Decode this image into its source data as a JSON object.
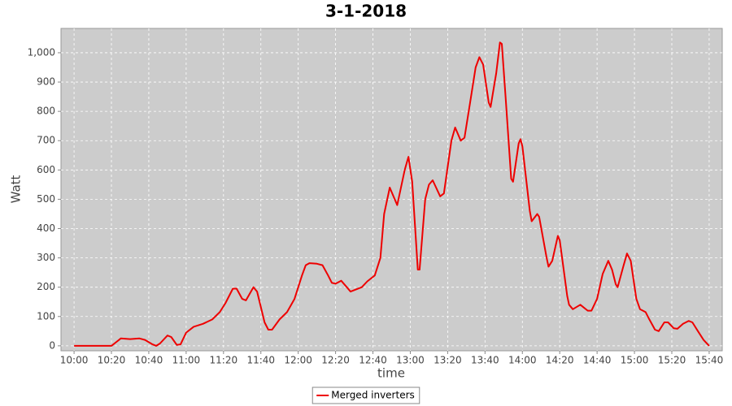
{
  "chart_data": {
    "type": "line",
    "title": "3-1-2018",
    "x_label": "time",
    "y_label": "Watt",
    "grid": true,
    "legend": "bottom",
    "xlim": [
      "09:53",
      "15:47"
    ],
    "xticks": [
      "10:00",
      "10:20",
      "10:40",
      "11:00",
      "11:20",
      "11:40",
      "12:00",
      "12:20",
      "12:40",
      "13:00",
      "13:20",
      "13:40",
      "14:00",
      "14:20",
      "14:40",
      "15:00",
      "15:20",
      "15:40"
    ],
    "ylim": [
      -17,
      1083
    ],
    "yticks": [
      0,
      100,
      200,
      300,
      400,
      500,
      600,
      700,
      800,
      900,
      {
        "value": 1000,
        "label": "1,000"
      }
    ],
    "x": [
      "10:00",
      "10:10",
      "10:20",
      "10:23",
      "10:25",
      "10:30",
      "10:35",
      "10:38",
      "10:42",
      "10:44",
      "10:46",
      "10:50",
      "10:52",
      "10:55",
      "10:57",
      "11:00",
      "11:04",
      "11:09",
      "11:14",
      "11:18",
      "11:21",
      "11:25",
      "11:27",
      "11:30",
      "11:32",
      "11:36",
      "11:38",
      "11:42",
      "11:44",
      "11:46",
      "11:50",
      "11:54",
      "11:58",
      "12:02",
      "12:04",
      "12:06",
      "12:10",
      "12:13",
      "12:16",
      "12:18",
      "12:20",
      "12:23",
      "12:26",
      "12:28",
      "12:34",
      "12:37",
      "12:41",
      "12:44",
      "12:46",
      "12:49",
      "12:53",
      "12:57",
      "12:59",
      "13:01",
      "13:04",
      "13:05",
      "13:08",
      "13:10",
      "13:12",
      "13:16",
      "13:18",
      "13:22",
      "13:24",
      "13:27",
      "13:29",
      "13:32",
      "13:35",
      "13:37",
      "13:39",
      "13:42",
      "13:43",
      "13:46",
      "13:48",
      "13:49",
      "13:51",
      "13:54",
      "13:55",
      "13:58",
      "13:59",
      "14:00",
      "14:04",
      "14:05",
      "14:08",
      "14:09",
      "14:13",
      "14:14",
      "14:16",
      "14:19",
      "14:20",
      "14:24",
      "14:25",
      "14:27",
      "14:31",
      "14:35",
      "14:37",
      "14:40",
      "14:43",
      "14:46",
      "14:48",
      "14:50",
      "14:51",
      "14:54",
      "14:56",
      "14:58",
      "15:01",
      "15:03",
      "15:06",
      "15:08",
      "15:11",
      "15:13",
      "15:16",
      "15:18",
      "15:21",
      "15:23",
      "15:26",
      "15:29",
      "15:31",
      "15:34",
      "15:37",
      "15:40"
    ],
    "series": [
      {
        "name": "Merged inverters",
        "color": "#ee0000",
        "values": [
          0,
          0,
          0,
          15,
          25,
          23,
          25,
          20,
          5,
          0,
          8,
          35,
          30,
          3,
          5,
          45,
          65,
          75,
          90,
          115,
          145,
          195,
          195,
          160,
          155,
          200,
          185,
          80,
          55,
          55,
          90,
          115,
          160,
          240,
          275,
          282,
          280,
          275,
          240,
          215,
          212,
          222,
          200,
          185,
          200,
          220,
          240,
          300,
          450,
          540,
          480,
          600,
          645,
          560,
          260,
          260,
          500,
          550,
          565,
          510,
          520,
          700,
          745,
          700,
          710,
          830,
          950,
          985,
          960,
          830,
          815,
          930,
          1035,
          1030,
          850,
          570,
          560,
          690,
          705,
          680,
          460,
          425,
          450,
          440,
          300,
          270,
          290,
          375,
          360,
          170,
          140,
          125,
          140,
          120,
          120,
          160,
          245,
          290,
          260,
          210,
          200,
          270,
          315,
          290,
          160,
          125,
          115,
          90,
          55,
          50,
          80,
          80,
          60,
          58,
          75,
          85,
          80,
          50,
          20,
          0
        ]
      }
    ]
  }
}
